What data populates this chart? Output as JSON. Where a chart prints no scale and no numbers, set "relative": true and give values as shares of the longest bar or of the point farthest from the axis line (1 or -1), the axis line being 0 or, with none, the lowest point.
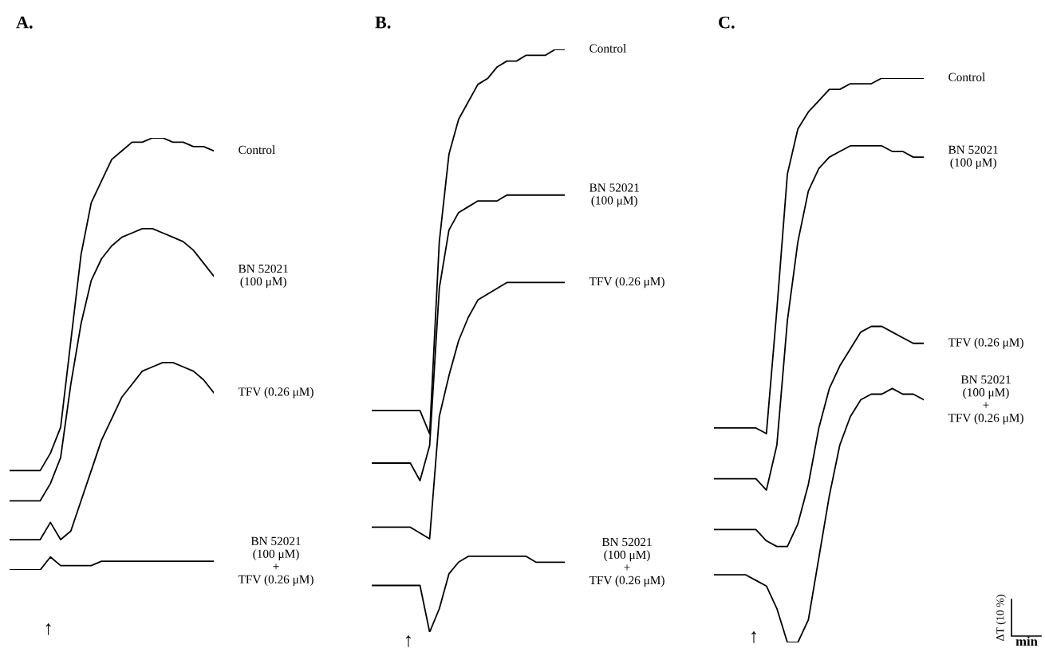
{
  "chart_data": [
    {
      "type": "line",
      "title": "A.",
      "relative": true,
      "tick_labels": false,
      "categories": [
        null,
        null,
        null,
        null,
        null,
        null,
        null,
        null,
        null,
        null,
        null,
        null,
        null,
        null,
        null,
        null,
        null,
        null,
        null,
        null,
        null
      ],
      "series": [
        {
          "name": "Control",
          "color": "#000000",
          "values": [
            0.23,
            0.23,
            0.23,
            0.23,
            0.27,
            0.33,
            0.53,
            0.73,
            0.85,
            0.9,
            0.95,
            0.97,
            0.99,
            0.99,
            1.0,
            1.0,
            0.99,
            0.99,
            0.98,
            0.98,
            0.97
          ]
        },
        {
          "name": "BN 52021\n(100 μM)",
          "color": "#000000",
          "values": [
            0.16,
            0.16,
            0.16,
            0.16,
            0.2,
            0.26,
            0.43,
            0.57,
            0.67,
            0.72,
            0.75,
            0.77,
            0.78,
            0.79,
            0.79,
            0.78,
            0.77,
            0.76,
            0.74,
            0.71,
            0.68
          ]
        },
        {
          "name": "TFV (0.26 μM)",
          "color": "#000000",
          "values": [
            0.07,
            0.07,
            0.07,
            0.07,
            0.11,
            0.07,
            0.09,
            0.16,
            0.23,
            0.3,
            0.35,
            0.4,
            0.43,
            0.46,
            0.47,
            0.48,
            0.48,
            0.47,
            0.46,
            0.44,
            0.41
          ]
        },
        {
          "name": "BN 52021\n(100 μM)\n+\nTFV (0.26 μM)",
          "color": "#000000",
          "values": [
            0,
            0,
            0,
            0,
            0.03,
            0.01,
            0.01,
            0.01,
            0.01,
            0.02,
            0.02,
            0.02,
            0.02,
            0.02,
            0.02,
            0.02,
            0.02,
            0.02,
            0.02,
            0.02,
            0.02
          ]
        }
      ],
      "annotations": [
        "↑"
      ]
    },
    {
      "type": "line",
      "title": "B.",
      "relative": true,
      "tick_labels": false,
      "categories": [
        null,
        null,
        null,
        null,
        null,
        null,
        null,
        null,
        null,
        null,
        null,
        null,
        null,
        null,
        null,
        null,
        null,
        null,
        null,
        null,
        null
      ],
      "series": [
        {
          "name": "Control",
          "color": "#000000",
          "values": [
            0.38,
            0.38,
            0.38,
            0.38,
            0.38,
            0.38,
            0.34,
            0.67,
            0.82,
            0.88,
            0.91,
            0.94,
            0.95,
            0.97,
            0.98,
            0.98,
            0.99,
            0.99,
            0.99,
            1.0,
            1.0
          ]
        },
        {
          "name": "BN 52021\n(100 μM)",
          "color": "#000000",
          "values": [
            0.29,
            0.29,
            0.29,
            0.29,
            0.29,
            0.26,
            0.32,
            0.59,
            0.69,
            0.72,
            0.73,
            0.74,
            0.74,
            0.74,
            0.75,
            0.75,
            0.75,
            0.75,
            0.75,
            0.75,
            0.75
          ]
        },
        {
          "name": "TFV (0.26 μM)",
          "color": "#000000",
          "values": [
            0.18,
            0.18,
            0.18,
            0.18,
            0.18,
            0.17,
            0.16,
            0.37,
            0.44,
            0.5,
            0.54,
            0.57,
            0.58,
            0.59,
            0.6,
            0.6,
            0.6,
            0.6,
            0.6,
            0.6,
            0.6
          ]
        },
        {
          "name": "BN 52021\n(100 μM)\n+\nTFV (0.26 μM)",
          "color": "#000000",
          "values": [
            0.08,
            0.08,
            0.08,
            0.08,
            0.08,
            0.08,
            0,
            0.04,
            0.1,
            0.12,
            0.13,
            0.13,
            0.13,
            0.13,
            0.13,
            0.13,
            0.13,
            0.12,
            0.12,
            0.12,
            0.12
          ]
        }
      ],
      "annotations": [
        "↑"
      ]
    },
    {
      "type": "line",
      "title": "C.",
      "relative": true,
      "tick_labels": false,
      "categories": [
        null,
        null,
        null,
        null,
        null,
        null,
        null,
        null,
        null,
        null,
        null,
        null,
        null,
        null,
        null,
        null,
        null,
        null,
        null,
        null,
        null
      ],
      "series": [
        {
          "name": "Control",
          "color": "#000000",
          "values": [
            0.38,
            0.38,
            0.38,
            0.38,
            0.38,
            0.37,
            0.59,
            0.83,
            0.91,
            0.94,
            0.96,
            0.98,
            0.98,
            0.99,
            0.99,
            0.99,
            1.0,
            1.0,
            1.0,
            1.0,
            1.0
          ]
        },
        {
          "name": "BN 52021\n(100 μM)",
          "color": "#000000",
          "values": [
            0.29,
            0.29,
            0.29,
            0.29,
            0.29,
            0.27,
            0.35,
            0.57,
            0.71,
            0.8,
            0.84,
            0.86,
            0.87,
            0.88,
            0.88,
            0.88,
            0.88,
            0.87,
            0.87,
            0.86,
            0.86
          ]
        },
        {
          "name": "TFV (0.26 μM)",
          "color": "#000000",
          "values": [
            0.2,
            0.2,
            0.2,
            0.2,
            0.2,
            0.18,
            0.17,
            0.17,
            0.21,
            0.28,
            0.38,
            0.45,
            0.49,
            0.52,
            0.55,
            0.56,
            0.56,
            0.55,
            0.54,
            0.53,
            0.53
          ]
        },
        {
          "name": "BN 52021\n(100 μM)\n+\nTFV (0.26 μM)",
          "color": "#000000",
          "values": [
            0.12,
            0.12,
            0.12,
            0.12,
            0.11,
            0.1,
            0.06,
            0,
            0.0,
            0.04,
            0.15,
            0.26,
            0.35,
            0.4,
            0.43,
            0.44,
            0.44,
            0.45,
            0.44,
            0.44,
            0.43
          ]
        }
      ],
      "annotations": [
        "↑",
        "ΔT (10 %)",
        "min"
      ]
    }
  ]
}
